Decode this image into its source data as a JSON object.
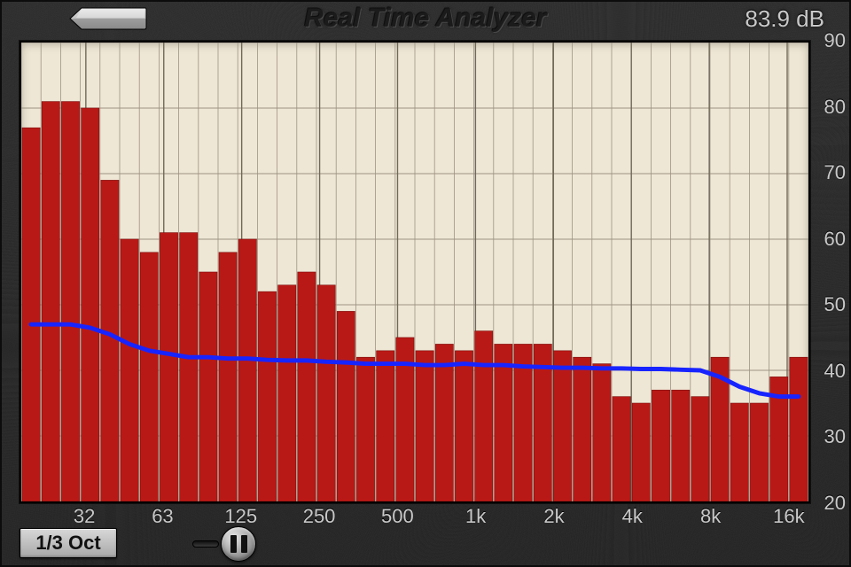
{
  "header": {
    "title": "Real Time Analyzer",
    "db_readout": "83.9 dB"
  },
  "controls": {
    "mode_label": "1/3 Oct"
  },
  "chart": {
    "type": "bar",
    "background_color": "#efe7d5",
    "grid_color": "#9c9382",
    "major_grid_color": "#706858",
    "bar_color": "#b91916",
    "bar_border_color": "#7a0f0e",
    "curve_color": "#1824ff",
    "curve_width": 5,
    "ylim": [
      20,
      90
    ],
    "y_ticks": [
      20,
      30,
      40,
      50,
      60,
      70,
      80,
      90
    ],
    "x_tick_labels": [
      "32",
      "63",
      "125",
      "250",
      "500",
      "1k",
      "2k",
      "4k",
      "8k",
      "16k"
    ],
    "x_tick_positions_pct": [
      8.2,
      18.1,
      28.0,
      37.9,
      47.8,
      57.7,
      67.6,
      77.5,
      87.4,
      97.3
    ],
    "bar_values": [
      77,
      81,
      81,
      80,
      69,
      60,
      58,
      61,
      61,
      55,
      58,
      60,
      52,
      53,
      55,
      53,
      49,
      42,
      43,
      45,
      43,
      44,
      43,
      46,
      44,
      44,
      44,
      43,
      42,
      41,
      36,
      35,
      37,
      37,
      36,
      42,
      35,
      35,
      39,
      42
    ],
    "curve_values": [
      47,
      47,
      47,
      46.5,
      45.5,
      44,
      43,
      42.5,
      42,
      42,
      41.8,
      41.8,
      41.6,
      41.5,
      41.5,
      41.3,
      41.2,
      41,
      41,
      41,
      40.8,
      40.8,
      41,
      40.8,
      40.8,
      40.6,
      40.5,
      40.4,
      40.4,
      40.3,
      40.3,
      40.2,
      40.2,
      40.1,
      40,
      39,
      37.5,
      36.5,
      36,
      36
    ]
  },
  "colors": {
    "frame_bg": "#2a2a2a",
    "text_light": "#c9c9c9",
    "title_dark": "#1b1b1b"
  }
}
